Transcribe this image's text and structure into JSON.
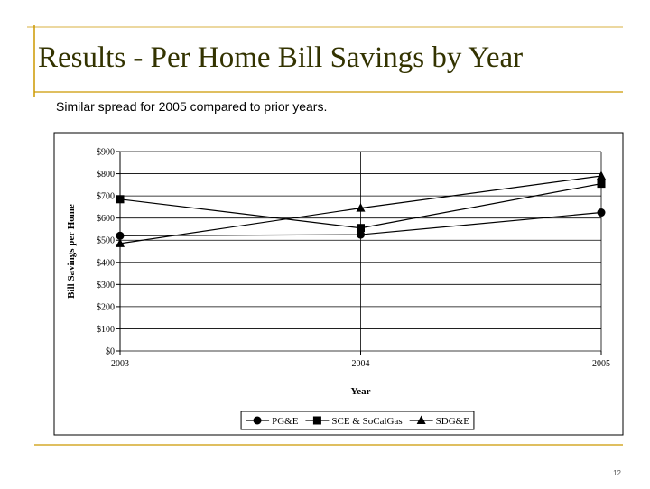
{
  "slide": {
    "title": "Results - Per Home Bill Savings by Year",
    "subtitle": "Similar spread for 2005 compared to prior years.",
    "page_number": "12"
  },
  "chart_data": {
    "type": "line",
    "x": [
      2003,
      2004,
      2005
    ],
    "xlim": [
      2003,
      2005
    ],
    "xticks": [
      2003,
      2004,
      2005
    ],
    "ylim": [
      0,
      900
    ],
    "yticks": [
      {
        "value": 0,
        "label": "$0"
      },
      {
        "value": 100,
        "label": "$100"
      },
      {
        "value": 200,
        "label": "$200"
      },
      {
        "value": 300,
        "label": "$300"
      },
      {
        "value": 400,
        "label": "$400"
      },
      {
        "value": 500,
        "label": "$500"
      },
      {
        "value": 600,
        "label": "$600"
      },
      {
        "value": 700,
        "label": "$700"
      },
      {
        "value": 800,
        "label": "$800"
      },
      {
        "value": 900,
        "label": "$900"
      }
    ],
    "xlabel": "Year",
    "ylabel": "Bill Savings per Home",
    "grid": true,
    "legend": "bottom",
    "series": [
      {
        "name": "PG&E",
        "color": "#000000",
        "marker": "circle",
        "values": [
          520,
          525,
          625
        ]
      },
      {
        "name": "SCE & SoCalGas",
        "color": "#000000",
        "marker": "square",
        "values": [
          685,
          555,
          755
        ]
      },
      {
        "name": "SDG&E",
        "color": "#000000",
        "marker": "triangle",
        "values": [
          485,
          645,
          790
        ]
      }
    ]
  }
}
